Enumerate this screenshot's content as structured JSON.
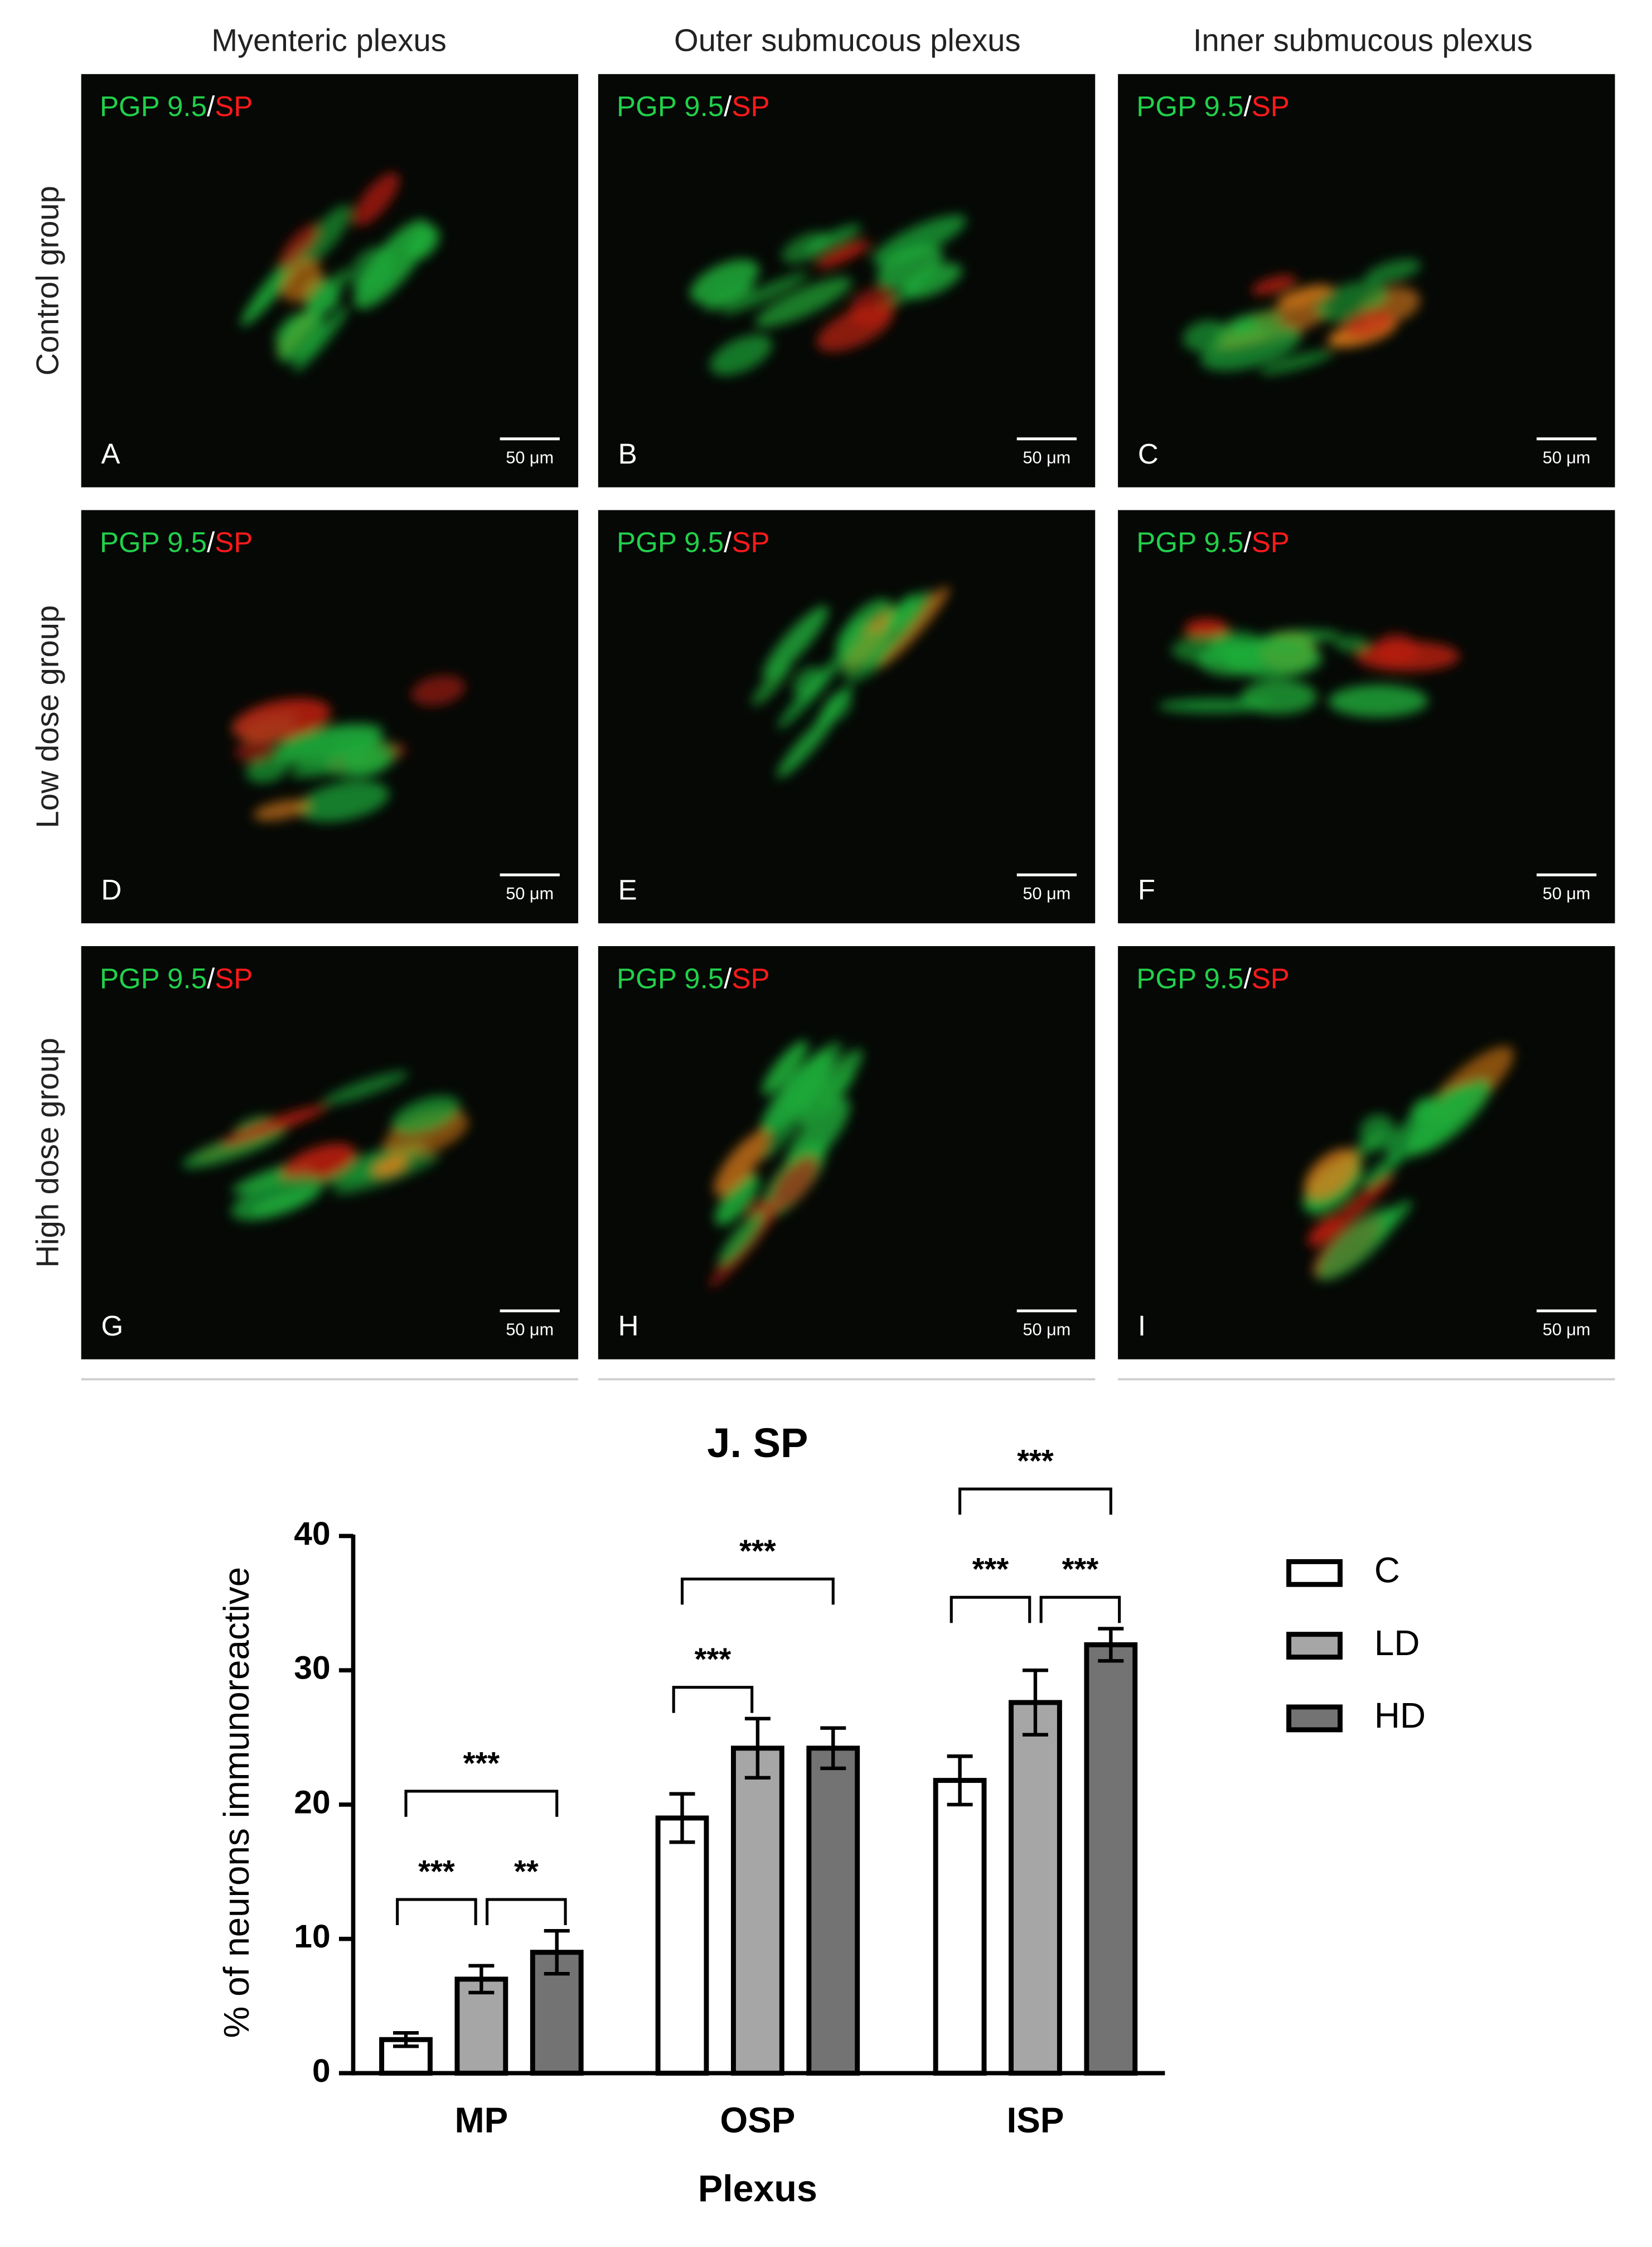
{
  "figure": {
    "column_titles": [
      "Myenteric plexus",
      "Outer submucous plexus",
      "Inner submucous plexus"
    ],
    "row_titles": [
      "Control group",
      "Low dose group",
      "High dose group"
    ],
    "panels": [
      {
        "letter": "A",
        "stain_green": "PGP 9.5",
        "separator": "/",
        "stain_red": "SP",
        "scale": "50 μm"
      },
      {
        "letter": "B",
        "stain_green": "PGP 9.5",
        "separator": "/",
        "stain_red": "SP",
        "scale": "50 μm"
      },
      {
        "letter": "C",
        "stain_green": "PGP 9.5",
        "separator": "/",
        "stain_red": "SP",
        "scale": "50 μm"
      },
      {
        "letter": "D",
        "stain_green": "PGP 9.5",
        "separator": "/",
        "stain_red": "SP",
        "scale": "50 μm"
      },
      {
        "letter": "E",
        "stain_green": "PGP 9.5",
        "separator": "/",
        "stain_red": "SP",
        "scale": "50 μm"
      },
      {
        "letter": "F",
        "stain_green": "PGP 9.5",
        "separator": "/",
        "stain_red": "SP",
        "scale": "50 μm"
      },
      {
        "letter": "G",
        "stain_green": "PGP 9.5",
        "separator": "/",
        "stain_red": "SP",
        "scale": "50 μm"
      },
      {
        "letter": "H",
        "stain_green": "PGP 9.5",
        "separator": "/",
        "stain_red": "SP",
        "scale": "50 μm"
      },
      {
        "letter": "I",
        "stain_green": "PGP 9.5",
        "separator": "/",
        "stain_red": "SP",
        "scale": "50 μm"
      }
    ]
  },
  "chart_data": {
    "type": "bar",
    "title": "J. SP",
    "x_label": "Plexus",
    "y_label": "% of neurons immunoreactive",
    "categories": [
      "MP",
      "OSP",
      "ISP"
    ],
    "series": [
      {
        "name": "C",
        "color": "#ffffff",
        "values": [
          2.5,
          19,
          21.8
        ],
        "errors": [
          0.5,
          1.8,
          1.8
        ]
      },
      {
        "name": "LD",
        "color": "#a6a6a6",
        "values": [
          7,
          24.2,
          27.6
        ],
        "errors": [
          1,
          2.2,
          2.4
        ]
      },
      {
        "name": "HD",
        "color": "#737373",
        "values": [
          9,
          24.2,
          31.9
        ],
        "errors": [
          1.6,
          1.5,
          1.2
        ]
      }
    ],
    "ylim": [
      0,
      40
    ],
    "yticks": [
      0,
      10,
      20,
      30,
      40
    ],
    "significance": [
      {
        "category": "MP",
        "groups": [
          "C",
          "LD"
        ],
        "label": "***"
      },
      {
        "category": "MP",
        "groups": [
          "LD",
          "HD"
        ],
        "label": "**"
      },
      {
        "category": "MP",
        "groups": [
          "C",
          "HD"
        ],
        "label": "***"
      },
      {
        "category": "OSP",
        "groups": [
          "C",
          "LD"
        ],
        "label": "***"
      },
      {
        "category": "OSP",
        "groups": [
          "C",
          "HD"
        ],
        "label": "***"
      },
      {
        "category": "ISP",
        "groups": [
          "C",
          "LD"
        ],
        "label": "***"
      },
      {
        "category": "ISP",
        "groups": [
          "LD",
          "HD"
        ],
        "label": "***"
      },
      {
        "category": "ISP",
        "groups": [
          "C",
          "HD"
        ],
        "label": "***"
      }
    ]
  }
}
